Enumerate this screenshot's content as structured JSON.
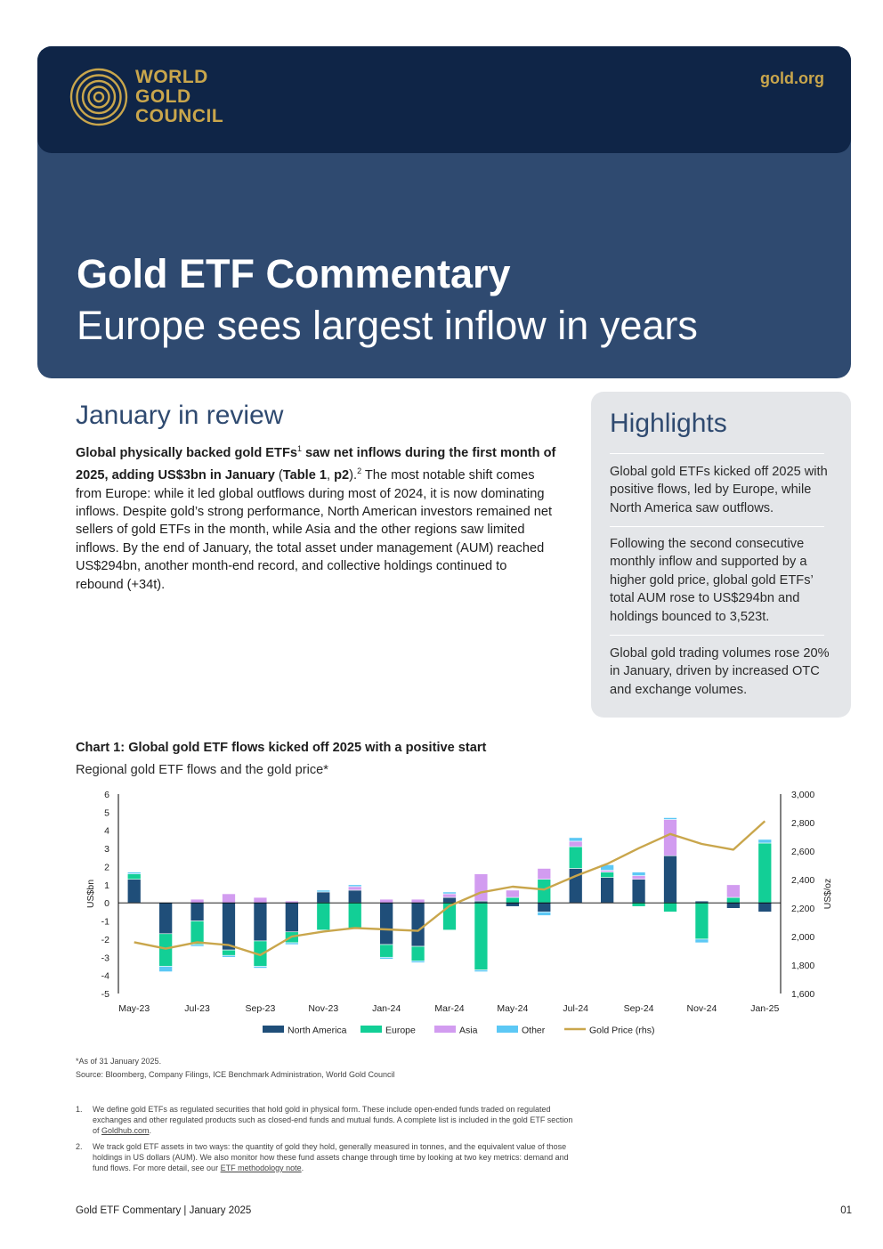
{
  "header": {
    "logo_lines": [
      "WORLD",
      "GOLD",
      "COUNCIL"
    ],
    "site": "gold.org",
    "title": "Gold ETF Commentary",
    "subtitle": "Europe sees largest inflow in years"
  },
  "review": {
    "heading": "January in review",
    "bold_lead": "Global physically backed gold ETFs",
    "sup1": "1",
    "bold_mid": " saw net inflows during the first month of 2025, adding US$3bn in January",
    "paren_open": " (",
    "ref_table": "Table 1",
    "ref_sep": ", ",
    "ref_page": "p2",
    "paren_close": ").",
    "sup2": "2",
    "body": " The most notable shift comes from Europe: while it led global outflows during most of 2024, it is now dominating inflows. Despite gold’s strong performance, North American investors remained net sellers of gold ETFs in the month, while Asia and the other regions saw limited inflows. By the end of January, the total asset under management (AUM) reached US$294bn, another month-end record, and collective holdings continued to rebound (+34t)."
  },
  "highlights": {
    "title": "Highlights",
    "items": [
      "Global gold ETFs kicked off 2025 with positive flows, led by Europe, while North America saw outflows.",
      "Following the second consecutive monthly inflow and supported by a higher gold price, global gold ETFs’ total AUM rose to US$294bn and holdings bounced to 3,523t.",
      "Global gold trading volumes rose 20% in January, driven by increased OTC and exchange volumes."
    ]
  },
  "chart_title": "Chart 1: Global gold ETF flows kicked off 2025 with a positive start",
  "chart_subtitle": "Regional gold ETF flows and the gold price*",
  "colors": {
    "north_america": "#1f4e79",
    "europe": "#12cf96",
    "asia": "#d29cf0",
    "other": "#5cc8f5",
    "gold": "#c9a64c",
    "header_dark": "#0f2547",
    "header_light": "#2f4a70"
  },
  "chart_data": {
    "type": "bar",
    "stacked": true,
    "categories": [
      "May-23",
      "Jun-23",
      "Jul-23",
      "Aug-23",
      "Sep-23",
      "Oct-23",
      "Nov-23",
      "Dec-23",
      "Jan-24",
      "Feb-24",
      "Mar-24",
      "Apr-24",
      "May-24",
      "Jun-24",
      "Jul-24",
      "Aug-24",
      "Sep-24",
      "Oct-24",
      "Nov-24",
      "Dec-24",
      "Jan-25"
    ],
    "tick_labels": [
      "May-23",
      "Jul-23",
      "Sep-23",
      "Nov-23",
      "Jan-24",
      "Mar-24",
      "May-24",
      "Jul-24",
      "Sep-24",
      "Nov-24",
      "Jan-25"
    ],
    "ylabel": "US$bn",
    "ylim": [
      -5,
      6
    ],
    "yticks": [
      "6",
      "5",
      "4",
      "3",
      "2",
      "1",
      "0",
      "-1",
      "-2",
      "-3",
      "-4",
      "-5"
    ],
    "y2label": "US$/oz",
    "y2lim": [
      1600,
      3000
    ],
    "y2ticks": [
      "3,000",
      "2,800",
      "2,600",
      "2,400",
      "2,200",
      "2,000",
      "1,800",
      "1,600"
    ],
    "series": [
      {
        "name": "North America",
        "values": [
          1.3,
          -1.7,
          -1.0,
          -2.6,
          -2.1,
          -1.6,
          0.6,
          0.7,
          -2.3,
          -2.4,
          0.3,
          0.1,
          -0.2,
          -0.5,
          1.9,
          1.4,
          1.3,
          2.6,
          0.1,
          -0.3,
          -0.5
        ]
      },
      {
        "name": "Europe",
        "values": [
          0.3,
          -1.8,
          -1.3,
          -0.3,
          -1.4,
          -0.6,
          -1.5,
          -1.4,
          -0.7,
          -0.8,
          -1.5,
          -3.7,
          0.3,
          1.3,
          1.2,
          0.3,
          -0.2,
          -0.5,
          -2.0,
          0.3,
          3.3
        ]
      },
      {
        "name": "Asia",
        "values": [
          0.0,
          0.0,
          0.2,
          0.5,
          0.3,
          0.1,
          0.0,
          0.2,
          0.2,
          0.2,
          0.2,
          1.5,
          0.4,
          0.6,
          0.3,
          0.1,
          0.2,
          2.0,
          0.0,
          0.7,
          0.0
        ]
      },
      {
        "name": "Other",
        "values": [
          0.1,
          -0.3,
          -0.1,
          -0.1,
          -0.1,
          -0.1,
          0.1,
          0.1,
          -0.1,
          -0.1,
          0.1,
          -0.1,
          0.0,
          -0.2,
          0.2,
          0.3,
          0.2,
          0.1,
          -0.2,
          0.0,
          0.2
        ]
      }
    ],
    "line_series": {
      "name": "Gold Price (rhs)",
      "axis": "rhs",
      "values": [
        1960,
        1915,
        1960,
        1940,
        1870,
        2000,
        2035,
        2060,
        2050,
        2040,
        2215,
        2310,
        2350,
        2330,
        2425,
        2510,
        2620,
        2720,
        2650,
        2610,
        2810
      ]
    },
    "legend": [
      "North America",
      "Europe",
      "Asia",
      "Other",
      "Gold Price (rhs)"
    ],
    "legend_position": "bottom"
  },
  "source": {
    "asof": "*As of 31 January 2025.",
    "text": "Source: Bloomberg, Company Filings, ICE Benchmark Administration, World Gold Council"
  },
  "footnotes": [
    {
      "num": "1.",
      "pre": "We define gold ETFs as regulated securities that hold gold in physical form. These include open-ended funds traded on regulated exchanges and other regulated products such as closed-end funds and mutual funds. A complete list is included in the gold ETF section of ",
      "link": "Goldhub.com",
      "post": "."
    },
    {
      "num": "2.",
      "pre": "We track gold ETF assets in two ways: the quantity of gold they hold, generally measured in tonnes, and the equivalent value of those holdings in US dollars (AUM). We also monitor how these fund assets change through time by looking at two key metrics: demand and fund flows. For more detail, see our ",
      "link": "ETF methodology note",
      "post": "."
    }
  ],
  "footer": {
    "left": "Gold ETF Commentary | January 2025",
    "right": "01"
  }
}
